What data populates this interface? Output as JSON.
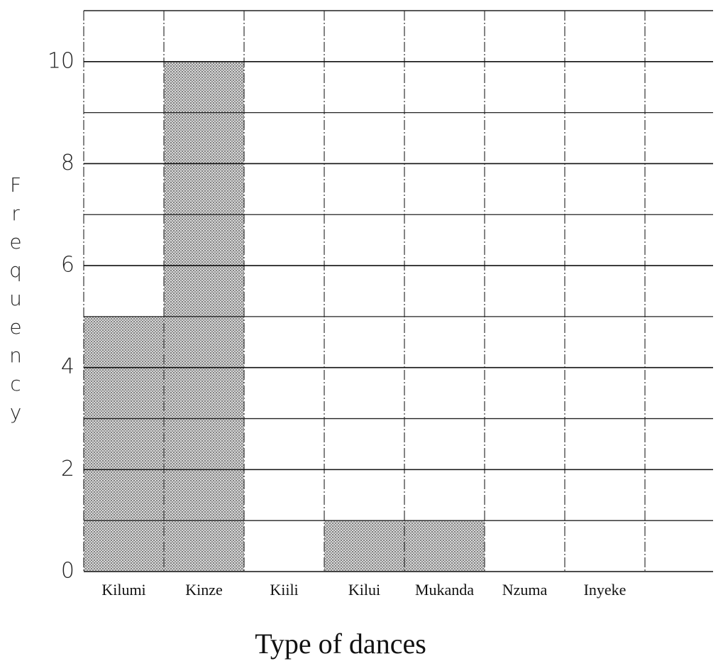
{
  "chart_data": {
    "type": "bar",
    "x_label": "Type of dances",
    "y_label": "Frequency",
    "categories": [
      "Kilumi",
      "Kinze",
      "Kiili",
      "Kilui",
      "Mukanda",
      "Nzuma",
      "Inyeke"
    ],
    "values": [
      5,
      10,
      0,
      1,
      1,
      0,
      0
    ],
    "color": "#b8b8b8",
    "ylim": [
      0,
      11
    ],
    "yticks": [
      0,
      2,
      4,
      6,
      8,
      10
    ],
    "grid": true
  }
}
